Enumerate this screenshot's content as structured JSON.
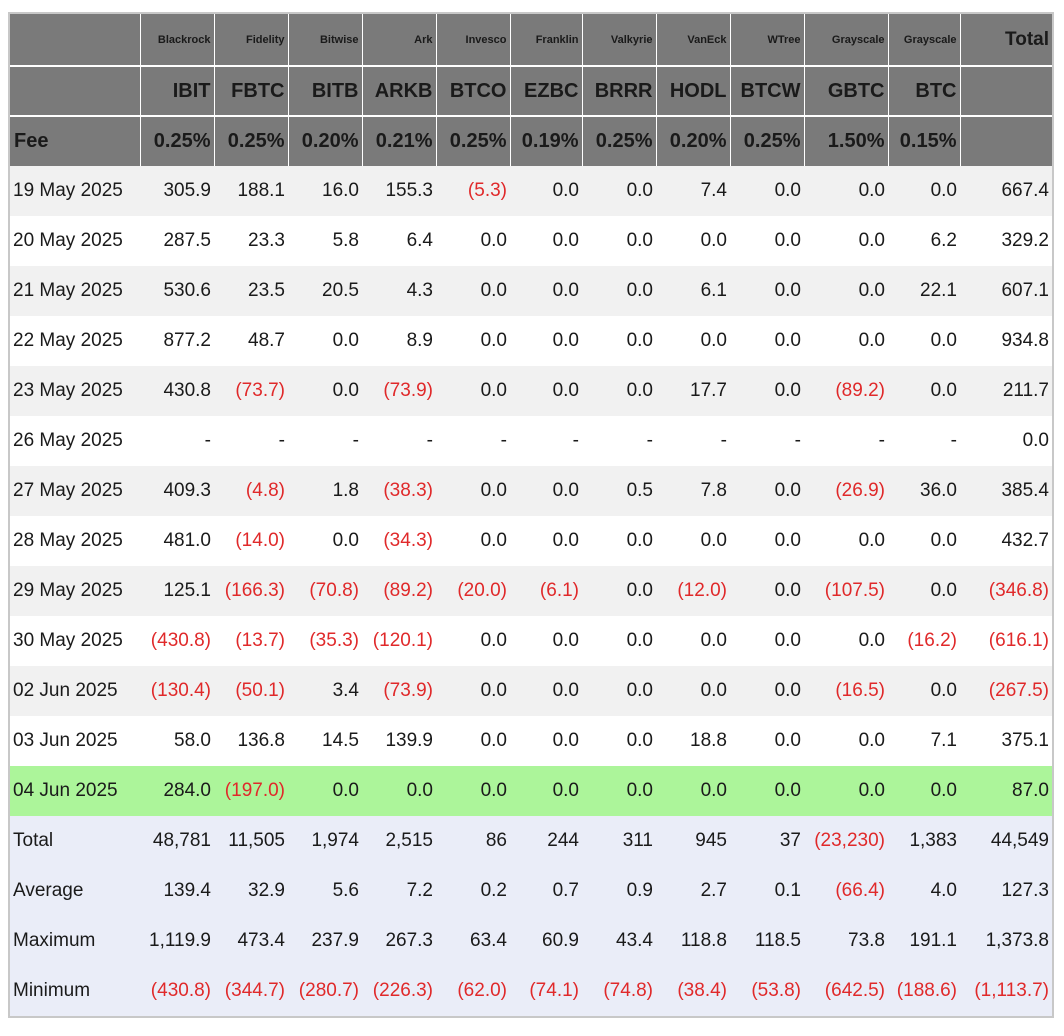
{
  "colors": {
    "header_bg": "#7a7a7a",
    "header_text": "#ffffff",
    "row_alt_bg": "#f1f1f1",
    "latest_row_bg": "#acf59a",
    "summary_bg": "#eaedf8",
    "negative_text": "#e0292a"
  },
  "header": {
    "issuers": [
      "Blackrock",
      "Fidelity",
      "Bitwise",
      "Ark",
      "Invesco",
      "Franklin",
      "Valkyrie",
      "VanEck",
      "WTree",
      "Grayscale",
      "Grayscale"
    ],
    "total_label": "Total",
    "tickers": [
      "IBIT",
      "FBTC",
      "BITB",
      "ARKB",
      "BTCO",
      "EZBC",
      "BRRR",
      "HODL",
      "BTCW",
      "GBTC",
      "BTC"
    ],
    "fee_label": "Fee",
    "fees": [
      "0.25%",
      "0.25%",
      "0.20%",
      "0.21%",
      "0.25%",
      "0.19%",
      "0.25%",
      "0.20%",
      "0.25%",
      "1.50%",
      "0.15%"
    ]
  },
  "rows": [
    {
      "date": "19 May 2025",
      "values": [
        "305.9",
        "188.1",
        "16.0",
        "155.3",
        "(5.3)",
        "0.0",
        "0.0",
        "7.4",
        "0.0",
        "0.0",
        "0.0",
        "667.4"
      ]
    },
    {
      "date": "20 May 2025",
      "values": [
        "287.5",
        "23.3",
        "5.8",
        "6.4",
        "0.0",
        "0.0",
        "0.0",
        "0.0",
        "0.0",
        "0.0",
        "6.2",
        "329.2"
      ]
    },
    {
      "date": "21 May 2025",
      "values": [
        "530.6",
        "23.5",
        "20.5",
        "4.3",
        "0.0",
        "0.0",
        "0.0",
        "6.1",
        "0.0",
        "0.0",
        "22.1",
        "607.1"
      ]
    },
    {
      "date": "22 May 2025",
      "values": [
        "877.2",
        "48.7",
        "0.0",
        "8.9",
        "0.0",
        "0.0",
        "0.0",
        "0.0",
        "0.0",
        "0.0",
        "0.0",
        "934.8"
      ]
    },
    {
      "date": "23 May 2025",
      "values": [
        "430.8",
        "(73.7)",
        "0.0",
        "(73.9)",
        "0.0",
        "0.0",
        "0.0",
        "17.7",
        "0.0",
        "(89.2)",
        "0.0",
        "211.7"
      ]
    },
    {
      "date": "26 May 2025",
      "values": [
        "-",
        "-",
        "-",
        "-",
        "-",
        "-",
        "-",
        "-",
        "-",
        "-",
        "-",
        "0.0"
      ]
    },
    {
      "date": "27 May 2025",
      "values": [
        "409.3",
        "(4.8)",
        "1.8",
        "(38.3)",
        "0.0",
        "0.0",
        "0.5",
        "7.8",
        "0.0",
        "(26.9)",
        "36.0",
        "385.4"
      ]
    },
    {
      "date": "28 May 2025",
      "values": [
        "481.0",
        "(14.0)",
        "0.0",
        "(34.3)",
        "0.0",
        "0.0",
        "0.0",
        "0.0",
        "0.0",
        "0.0",
        "0.0",
        "432.7"
      ]
    },
    {
      "date": "29 May 2025",
      "values": [
        "125.1",
        "(166.3)",
        "(70.8)",
        "(89.2)",
        "(20.0)",
        "(6.1)",
        "0.0",
        "(12.0)",
        "0.0",
        "(107.5)",
        "0.0",
        "(346.8)"
      ]
    },
    {
      "date": "30 May 2025",
      "values": [
        "(430.8)",
        "(13.7)",
        "(35.3)",
        "(120.1)",
        "0.0",
        "0.0",
        "0.0",
        "0.0",
        "0.0",
        "0.0",
        "(16.2)",
        "(616.1)"
      ]
    },
    {
      "date": "02 Jun 2025",
      "values": [
        "(130.4)",
        "(50.1)",
        "3.4",
        "(73.9)",
        "0.0",
        "0.0",
        "0.0",
        "0.0",
        "0.0",
        "(16.5)",
        "0.0",
        "(267.5)"
      ]
    },
    {
      "date": "03 Jun 2025",
      "values": [
        "58.0",
        "136.8",
        "14.5",
        "139.9",
        "0.0",
        "0.0",
        "0.0",
        "18.8",
        "0.0",
        "0.0",
        "7.1",
        "375.1"
      ]
    },
    {
      "date": "04 Jun 2025",
      "values": [
        "284.0",
        "(197.0)",
        "0.0",
        "0.0",
        "0.0",
        "0.0",
        "0.0",
        "0.0",
        "0.0",
        "0.0",
        "0.0",
        "87.0"
      ],
      "highlight": true
    }
  ],
  "summary": [
    {
      "label": "Total",
      "values": [
        "48,781",
        "11,505",
        "1,974",
        "2,515",
        "86",
        "244",
        "311",
        "945",
        "37",
        "(23,230)",
        "1,383",
        "44,549"
      ]
    },
    {
      "label": "Average",
      "values": [
        "139.4",
        "32.9",
        "5.6",
        "7.2",
        "0.2",
        "0.7",
        "0.9",
        "2.7",
        "0.1",
        "(66.4)",
        "4.0",
        "127.3"
      ]
    },
    {
      "label": "Maximum",
      "values": [
        "1,119.9",
        "473.4",
        "237.9",
        "267.3",
        "63.4",
        "60.9",
        "43.4",
        "118.8",
        "118.5",
        "73.8",
        "191.1",
        "1,373.8"
      ]
    },
    {
      "label": "Minimum",
      "values": [
        "(430.8)",
        "(344.7)",
        "(280.7)",
        "(226.3)",
        "(62.0)",
        "(74.1)",
        "(74.8)",
        "(38.4)",
        "(53.8)",
        "(642.5)",
        "(188.6)",
        "(1,113.7)"
      ]
    }
  ]
}
